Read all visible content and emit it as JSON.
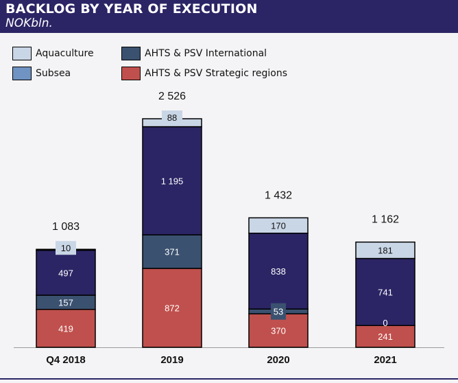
{
  "header": {
    "title": "BACKLOG BY YEAR OF EXECUTION",
    "subtitle": "NOKbln."
  },
  "colors": {
    "header_bg": "#2b2565",
    "aquaculture": "#c9d6e6",
    "subsea": "#6f93c2",
    "ahts_international": "#2b2565",
    "ahts_strategic": "#c0504d",
    "international_segment": "#3b5170"
  },
  "chart_data": {
    "type": "bar",
    "stacked": true,
    "categories": [
      "Q4 2018",
      "2019",
      "2020",
      "2021"
    ],
    "totals": [
      "1 083",
      "2 526",
      "1 432",
      "1 162"
    ],
    "legend": [
      {
        "name": "Aquaculture",
        "color": "#c9d6e6"
      },
      {
        "name": "AHTS & PSV International",
        "color": "#3b5170"
      },
      {
        "name": "Subsea",
        "color": "#6f93c2"
      },
      {
        "name": "AHTS & PSV Strategic regions",
        "color": "#c0504d"
      }
    ],
    "segments": [
      {
        "color": "#c0504d",
        "text_color": "#ffffff",
        "values": [
          419,
          872,
          370,
          241
        ],
        "labels": [
          "419",
          "872",
          "370",
          "241"
        ]
      },
      {
        "color": "#3b5170",
        "text_color": "#ffffff",
        "values": [
          157,
          371,
          53,
          0
        ],
        "labels": [
          "157",
          "371",
          "53",
          "0"
        ]
      },
      {
        "color": "#2b2565",
        "text_color": "#ffffff",
        "values": [
          497,
          1195,
          838,
          741
        ],
        "labels": [
          "497",
          "1 195",
          "838",
          "741"
        ]
      },
      {
        "color": "#c9d6e6",
        "text_color": "#111111",
        "values": [
          10,
          88,
          170,
          181
        ],
        "labels": [
          "10",
          "88",
          "170",
          "181"
        ]
      }
    ]
  }
}
